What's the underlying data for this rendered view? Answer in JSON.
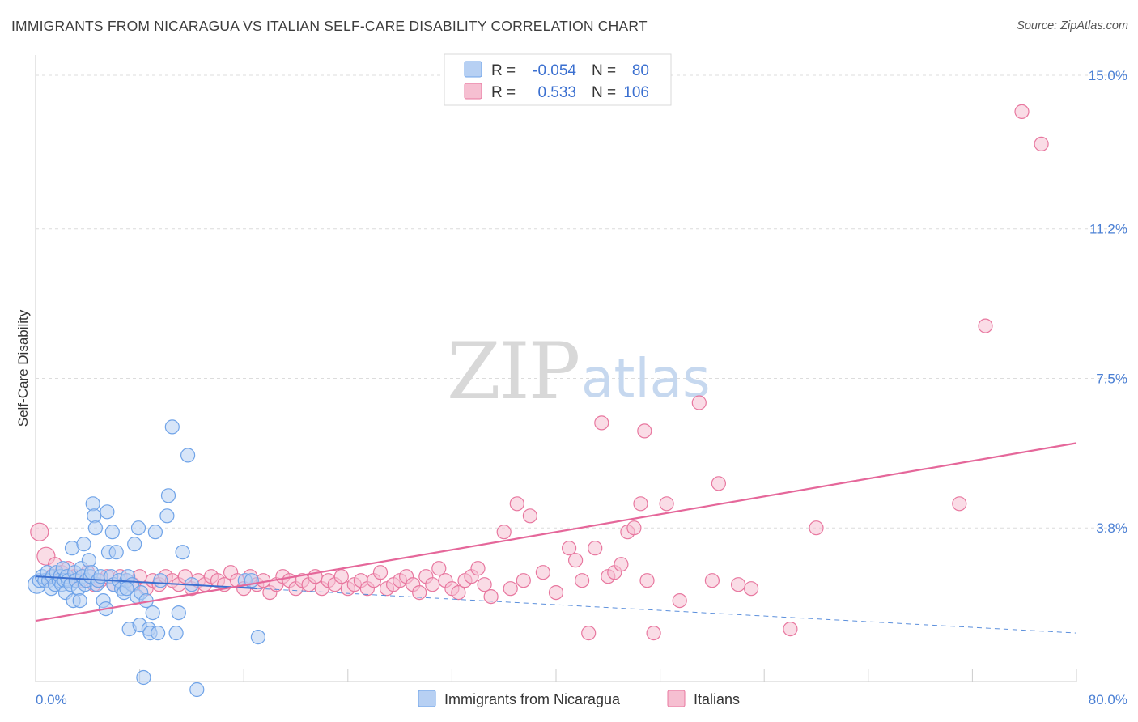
{
  "title": "IMMIGRANTS FROM NICARAGUA VS ITALIAN SELF-CARE DISABILITY CORRELATION CHART",
  "source": "Source: ZipAtlas.com",
  "watermark": {
    "part1": "ZIP",
    "part2": "atlas"
  },
  "colors": {
    "blue": "#6fa3e8",
    "blue_fill": "#b7d0f3",
    "pink": "#e8779f",
    "pink_fill": "#f6bfd1",
    "tick": "#4a7fd4"
  },
  "legend": {
    "rows": [
      {
        "r_label": "R =",
        "r_value": "-0.054",
        "n_label": "N =",
        "n_value": "80"
      },
      {
        "r_label": "R =",
        "r_value": "0.533",
        "n_label": "N =",
        "n_value": "106"
      }
    ]
  },
  "bottom_legend": {
    "series1": "Immigrants from Nicaragua",
    "series2": "Italians"
  },
  "chart_data": {
    "type": "scatter",
    "xlabel": "",
    "ylabel": "Self-Care Disability",
    "xlim": [
      0,
      80
    ],
    "ylim": [
      0,
      15.3
    ],
    "x_tick_labels": [
      {
        "value": 0,
        "label": "0.0%"
      },
      {
        "value": 80,
        "label": "80.0%"
      }
    ],
    "y_tick_labels": [
      {
        "value": 3.8,
        "label": "3.8%"
      },
      {
        "value": 7.5,
        "label": "7.5%"
      },
      {
        "value": 11.2,
        "label": "11.2%"
      },
      {
        "value": 15.0,
        "label": "15.0%"
      }
    ],
    "series": [
      {
        "name": "Immigrants from Nicaragua",
        "R": -0.054,
        "N": 80,
        "trend": {
          "x0": 0,
          "y0": 2.6,
          "x1": 80,
          "y1": 1.2,
          "solid_until_x": 17
        },
        "points": [
          [
            0.1,
            2.4
          ],
          [
            0.3,
            2.5
          ],
          [
            0.5,
            2.6
          ],
          [
            0.7,
            2.5
          ],
          [
            0.9,
            2.7
          ],
          [
            1.0,
            2.5
          ],
          [
            1.2,
            2.3
          ],
          [
            1.3,
            2.6
          ],
          [
            1.5,
            2.4
          ],
          [
            1.6,
            2.7
          ],
          [
            1.8,
            2.5
          ],
          [
            1.9,
            2.6
          ],
          [
            2.0,
            2.4
          ],
          [
            2.1,
            2.8
          ],
          [
            2.2,
            2.5
          ],
          [
            2.3,
            2.2
          ],
          [
            2.4,
            2.6
          ],
          [
            2.5,
            2.5
          ],
          [
            2.7,
            2.4
          ],
          [
            2.8,
            3.3
          ],
          [
            2.9,
            2.0
          ],
          [
            3.0,
            2.7
          ],
          [
            3.1,
            2.5
          ],
          [
            3.3,
            2.3
          ],
          [
            3.4,
            2.0
          ],
          [
            3.5,
            2.8
          ],
          [
            3.6,
            2.6
          ],
          [
            3.7,
            3.4
          ],
          [
            3.8,
            2.4
          ],
          [
            3.9,
            2.5
          ],
          [
            4.1,
            3.0
          ],
          [
            4.2,
            2.6
          ],
          [
            4.3,
            2.7
          ],
          [
            4.4,
            4.4
          ],
          [
            4.5,
            4.1
          ],
          [
            4.6,
            3.8
          ],
          [
            4.7,
            2.4
          ],
          [
            4.8,
            2.5
          ],
          [
            5.0,
            2.6
          ],
          [
            5.2,
            2.0
          ],
          [
            5.4,
            1.8
          ],
          [
            5.5,
            4.2
          ],
          [
            5.6,
            3.2
          ],
          [
            5.8,
            2.6
          ],
          [
            5.9,
            3.7
          ],
          [
            6.0,
            2.4
          ],
          [
            6.2,
            3.2
          ],
          [
            6.4,
            2.5
          ],
          [
            6.6,
            2.3
          ],
          [
            6.8,
            2.2
          ],
          [
            7.0,
            2.5
          ],
          [
            7.1,
            2.6
          ],
          [
            7.2,
            1.3
          ],
          [
            7.4,
            2.4
          ],
          [
            7.6,
            3.4
          ],
          [
            7.8,
            2.1
          ],
          [
            7.9,
            3.8
          ],
          [
            8.0,
            1.4
          ],
          [
            8.1,
            2.2
          ],
          [
            8.3,
            0.1
          ],
          [
            8.5,
            2.0
          ],
          [
            8.7,
            1.3
          ],
          [
            8.8,
            1.2
          ],
          [
            9.0,
            1.7
          ],
          [
            9.2,
            3.7
          ],
          [
            9.4,
            1.2
          ],
          [
            9.6,
            2.5
          ],
          [
            10.1,
            4.1
          ],
          [
            10.2,
            4.6
          ],
          [
            10.5,
            6.3
          ],
          [
            10.8,
            1.2
          ],
          [
            11.0,
            1.7
          ],
          [
            11.3,
            3.2
          ],
          [
            11.7,
            5.6
          ],
          [
            12.4,
            -0.2
          ],
          [
            16.1,
            2.5
          ],
          [
            16.6,
            2.5
          ],
          [
            17.1,
            1.1
          ],
          [
            7.0,
            2.3
          ],
          [
            12.0,
            2.4
          ]
        ]
      },
      {
        "name": "Italians",
        "R": 0.533,
        "N": 106,
        "trend": {
          "x0": 0,
          "y0": 1.5,
          "x1": 80,
          "y1": 5.9
        },
        "points": [
          [
            0.3,
            3.7
          ],
          [
            0.8,
            3.1
          ],
          [
            1.2,
            2.6
          ],
          [
            1.5,
            2.9
          ],
          [
            2.0,
            2.7
          ],
          [
            2.5,
            2.8
          ],
          [
            3.0,
            2.6
          ],
          [
            3.5,
            2.5
          ],
          [
            4.0,
            2.7
          ],
          [
            4.5,
            2.4
          ],
          [
            5.0,
            2.5
          ],
          [
            5.5,
            2.6
          ],
          [
            6.0,
            2.4
          ],
          [
            6.5,
            2.6
          ],
          [
            7.0,
            2.5
          ],
          [
            7.5,
            2.4
          ],
          [
            8.0,
            2.6
          ],
          [
            8.5,
            2.3
          ],
          [
            9.0,
            2.5
          ],
          [
            9.5,
            2.4
          ],
          [
            10.0,
            2.6
          ],
          [
            10.5,
            2.5
          ],
          [
            11.0,
            2.4
          ],
          [
            11.5,
            2.6
          ],
          [
            12.0,
            2.3
          ],
          [
            12.5,
            2.5
          ],
          [
            13.0,
            2.4
          ],
          [
            13.5,
            2.6
          ],
          [
            14.0,
            2.5
          ],
          [
            14.5,
            2.4
          ],
          [
            15.0,
            2.7
          ],
          [
            15.5,
            2.5
          ],
          [
            16.0,
            2.3
          ],
          [
            16.5,
            2.6
          ],
          [
            17.0,
            2.4
          ],
          [
            17.5,
            2.5
          ],
          [
            18.0,
            2.2
          ],
          [
            18.5,
            2.4
          ],
          [
            19.0,
            2.6
          ],
          [
            19.5,
            2.5
          ],
          [
            20.0,
            2.3
          ],
          [
            20.5,
            2.5
          ],
          [
            21.0,
            2.4
          ],
          [
            21.5,
            2.6
          ],
          [
            22.0,
            2.3
          ],
          [
            22.5,
            2.5
          ],
          [
            23.0,
            2.4
          ],
          [
            23.5,
            2.6
          ],
          [
            24.0,
            2.3
          ],
          [
            24.5,
            2.4
          ],
          [
            25.0,
            2.5
          ],
          [
            25.5,
            2.3
          ],
          [
            26.0,
            2.5
          ],
          [
            26.5,
            2.7
          ],
          [
            27.0,
            2.3
          ],
          [
            27.5,
            2.4
          ],
          [
            28.0,
            2.5
          ],
          [
            28.5,
            2.6
          ],
          [
            29.0,
            2.4
          ],
          [
            29.5,
            2.2
          ],
          [
            30.0,
            2.6
          ],
          [
            30.5,
            2.4
          ],
          [
            31.0,
            2.8
          ],
          [
            31.5,
            2.5
          ],
          [
            32.0,
            2.3
          ],
          [
            32.5,
            2.2
          ],
          [
            33.0,
            2.5
          ],
          [
            33.5,
            2.6
          ],
          [
            34.0,
            2.8
          ],
          [
            34.5,
            2.4
          ],
          [
            35.0,
            2.1
          ],
          [
            36.0,
            3.7
          ],
          [
            36.5,
            2.3
          ],
          [
            37.0,
            4.4
          ],
          [
            37.5,
            2.5
          ],
          [
            38.0,
            4.1
          ],
          [
            39.0,
            2.7
          ],
          [
            40.0,
            2.2
          ],
          [
            41.0,
            3.3
          ],
          [
            41.5,
            3.0
          ],
          [
            42.0,
            2.5
          ],
          [
            42.5,
            1.2
          ],
          [
            43.0,
            3.3
          ],
          [
            43.5,
            6.4
          ],
          [
            44.0,
            2.6
          ],
          [
            44.5,
            2.7
          ],
          [
            45.0,
            2.9
          ],
          [
            45.5,
            3.7
          ],
          [
            46.0,
            3.8
          ],
          [
            46.5,
            4.4
          ],
          [
            46.8,
            6.2
          ],
          [
            47.0,
            2.5
          ],
          [
            47.5,
            1.2
          ],
          [
            48.5,
            4.4
          ],
          [
            49.5,
            2.0
          ],
          [
            51.0,
            6.9
          ],
          [
            52.0,
            2.5
          ],
          [
            52.5,
            4.9
          ],
          [
            54.0,
            2.4
          ],
          [
            55.0,
            2.3
          ],
          [
            58.0,
            1.3
          ],
          [
            60.0,
            3.8
          ],
          [
            71.0,
            4.4
          ],
          [
            73.0,
            8.8
          ],
          [
            75.8,
            14.1
          ],
          [
            77.3,
            13.3
          ]
        ]
      }
    ]
  }
}
